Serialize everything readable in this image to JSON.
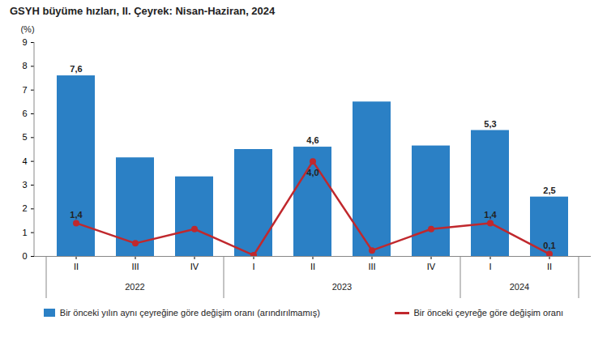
{
  "chart_data": {
    "type": "bar",
    "title": "GSYH büyüme hızları, II. Çeyrek: Nisan-Haziran, 2024",
    "y_label": "(%)",
    "categories": [
      "II",
      "III",
      "IV",
      "I",
      "II",
      "III",
      "IV",
      "I",
      "II"
    ],
    "groups": [
      "2022",
      "2022",
      "2022",
      "2023",
      "2023",
      "2023",
      "2023",
      "2024",
      "2024"
    ],
    "ylim": [
      0,
      9
    ],
    "yticks": [
      0,
      1,
      2,
      3,
      4,
      5,
      6,
      7,
      8,
      9
    ],
    "grid": false,
    "data_labels": true,
    "legend": "bottom",
    "series": [
      {
        "name": "Bir önceki yılın aynı çeyreğine göre değişim oranı (arındırılmamış)",
        "type": "bar",
        "color": "#2b80c5",
        "values": [
          7.6,
          4.15,
          3.35,
          4.5,
          4.6,
          6.5,
          4.65,
          5.3,
          2.5
        ],
        "value_labels": [
          "7,6",
          null,
          null,
          null,
          "4,6",
          null,
          null,
          "5,3",
          "2,5"
        ]
      },
      {
        "name": "Bir önceki çeyreğe göre değişim oranı",
        "type": "line",
        "color": "#c0282d",
        "marker": "circle",
        "values": [
          1.4,
          0.55,
          1.15,
          0.05,
          4.0,
          0.25,
          1.15,
          1.4,
          0.1
        ],
        "value_labels": [
          "1,4",
          null,
          null,
          null,
          "4,0",
          null,
          null,
          "1,4",
          "0,1"
        ]
      }
    ]
  }
}
